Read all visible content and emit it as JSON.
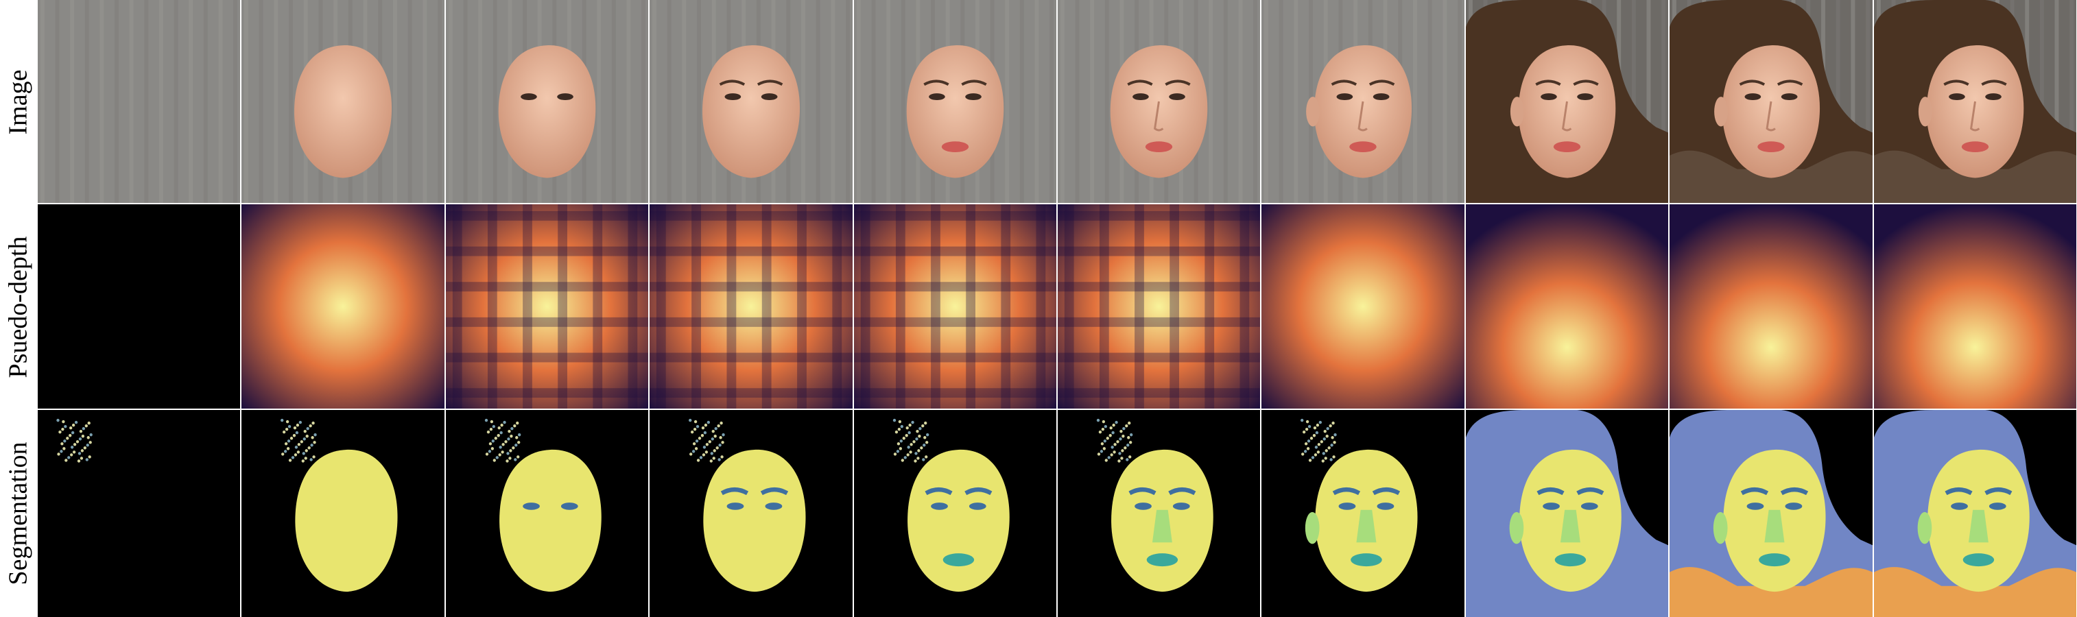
{
  "figure": {
    "row_labels": [
      "Image",
      "Psuedo-depth",
      "Segmentation"
    ],
    "num_columns": 10,
    "colors": {
      "background_gray": "#8a8986",
      "skin": "#e9b89d",
      "depth_low": "#1d0f3e",
      "depth_mid": "#e3733d",
      "depth_high": "#f8f39a",
      "seg_face": "#e8e56f",
      "seg_hair": "#7186c5",
      "seg_eyes": "#3f6fa0",
      "seg_nose_ear": "#a7dd7c",
      "seg_lips": "#3aa89c",
      "seg_clothes": "#e9a04f"
    },
    "columns": [
      {
        "face": false,
        "eyes": false,
        "brows": false,
        "nose": false,
        "lips": false,
        "ear": false,
        "hair": false,
        "clothes": false,
        "noise": true
      },
      {
        "face": true,
        "eyes": false,
        "brows": false,
        "nose": false,
        "lips": false,
        "ear": false,
        "hair": false,
        "clothes": false,
        "noise": true
      },
      {
        "face": true,
        "eyes": true,
        "brows": false,
        "nose": false,
        "lips": false,
        "ear": false,
        "hair": false,
        "clothes": false,
        "noise": true
      },
      {
        "face": true,
        "eyes": true,
        "brows": true,
        "nose": false,
        "lips": false,
        "ear": false,
        "hair": false,
        "clothes": false,
        "noise": true
      },
      {
        "face": true,
        "eyes": true,
        "brows": true,
        "nose": false,
        "lips": true,
        "ear": false,
        "hair": false,
        "clothes": false,
        "noise": true
      },
      {
        "face": true,
        "eyes": true,
        "brows": true,
        "nose": true,
        "lips": true,
        "ear": false,
        "hair": false,
        "clothes": false,
        "noise": true
      },
      {
        "face": true,
        "eyes": true,
        "brows": true,
        "nose": true,
        "lips": true,
        "ear": true,
        "hair": false,
        "clothes": false,
        "noise": true
      },
      {
        "face": true,
        "eyes": true,
        "brows": true,
        "nose": true,
        "lips": true,
        "ear": true,
        "hair": true,
        "clothes": false,
        "noise": false
      },
      {
        "face": true,
        "eyes": true,
        "brows": true,
        "nose": true,
        "lips": true,
        "ear": true,
        "hair": true,
        "clothes": true,
        "noise": false
      },
      {
        "face": true,
        "eyes": true,
        "brows": true,
        "nose": true,
        "lips": true,
        "ear": true,
        "hair": true,
        "clothes": true,
        "noise": false
      }
    ]
  }
}
